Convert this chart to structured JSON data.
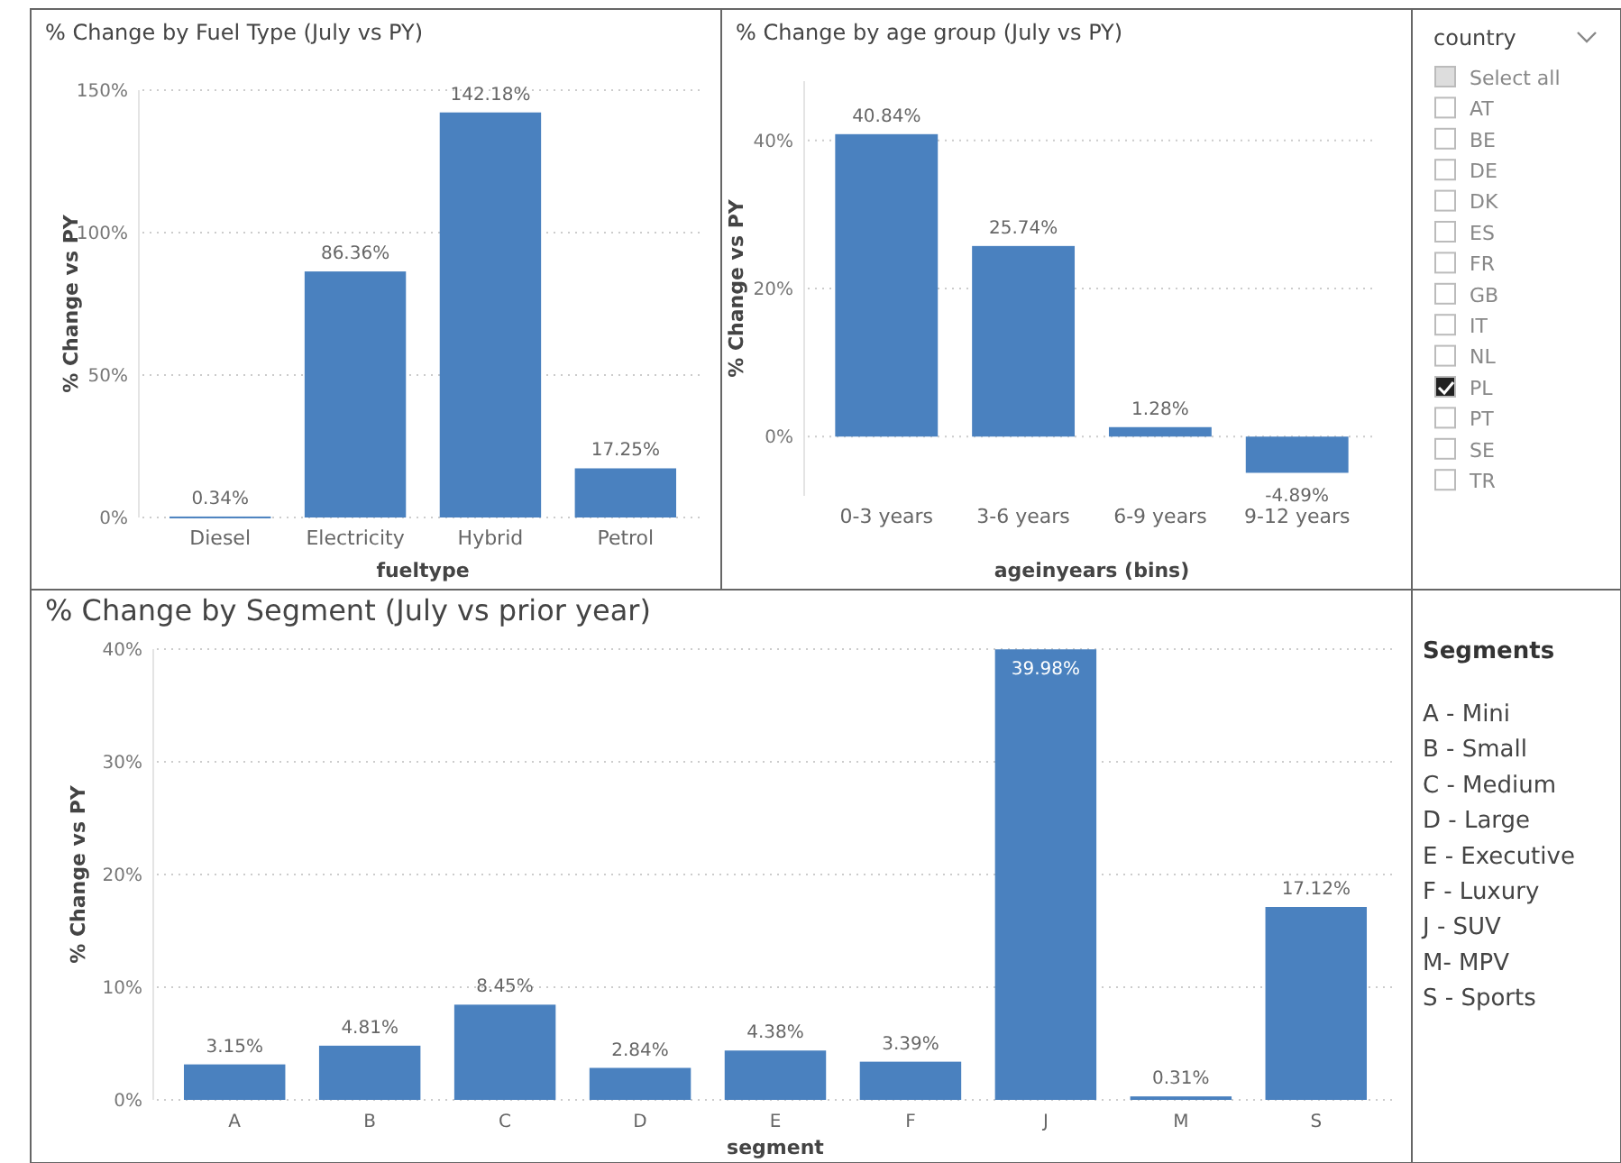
{
  "chart_data": [
    {
      "type": "bar",
      "title": "% Change by Fuel Type (July vs PY)",
      "xlabel": "fueltype",
      "ylabel": "% Change vs PY",
      "categories": [
        "Diesel",
        "Electricity",
        "Hybrid",
        "Petrol"
      ],
      "values": [
        0.34,
        86.36,
        142.18,
        17.25
      ],
      "value_labels": [
        "0.34%",
        "86.36%",
        "142.18%",
        "17.25%"
      ],
      "color": "#4a81bf",
      "ylim": [
        0,
        150
      ],
      "yticks": [
        {
          "value": 0,
          "label": "0%"
        },
        {
          "value": 50,
          "label": "50%"
        },
        {
          "value": 100,
          "label": "100%"
        },
        {
          "value": 150,
          "label": "150%"
        }
      ],
      "grid": "y"
    },
    {
      "type": "bar",
      "title": "% Change by age group (July vs PY)",
      "xlabel": "ageinyears (bins)",
      "ylabel": "% Change vs PY",
      "categories": [
        "0-3 years",
        "3-6 years",
        "6-9 years",
        "9-12 years"
      ],
      "values": [
        40.84,
        25.74,
        1.28,
        -4.89
      ],
      "value_labels": [
        "40.84%",
        "25.74%",
        "1.28%",
        "-4.89%"
      ],
      "color": "#4a81bf",
      "ylim": [
        -8,
        48
      ],
      "yticks": [
        {
          "value": 0,
          "label": "0%"
        },
        {
          "value": 20,
          "label": "20%"
        },
        {
          "value": 40,
          "label": "40%"
        }
      ],
      "grid": "y"
    },
    {
      "type": "other",
      "title": "country",
      "annotations": [
        "Select all",
        "AT",
        "BE",
        "DE",
        "DK",
        "ES",
        "FR",
        "GB",
        "IT",
        "NL",
        "PL",
        "PT",
        "SE",
        "TR"
      ],
      "colors": [
        "#dddddd",
        "#ffffff",
        "#ffffff",
        "#ffffff",
        "#ffffff",
        "#ffffff",
        "#ffffff",
        "#ffffff",
        "#ffffff",
        "#ffffff",
        "#222222",
        "#ffffff",
        "#ffffff",
        "#ffffff"
      ]
    },
    {
      "type": "bar",
      "title": "% Change by Segment (July vs prior year)",
      "xlabel": "segment",
      "ylabel": "% Change vs PY",
      "categories": [
        "A",
        "B",
        "C",
        "D",
        "E",
        "F",
        "J",
        "M",
        "S"
      ],
      "values": [
        3.15,
        4.81,
        8.45,
        2.84,
        4.38,
        3.39,
        39.98,
        0.31,
        17.12
      ],
      "value_labels": [
        "3.15%",
        "4.81%",
        "8.45%",
        "2.84%",
        "4.38%",
        "3.39%",
        "39.98%",
        "0.31%",
        "17.12%"
      ],
      "color": "#4a81bf",
      "ylim": [
        0,
        40
      ],
      "yticks": [
        {
          "value": 0,
          "label": "0%"
        },
        {
          "value": 10,
          "label": "10%"
        },
        {
          "value": 20,
          "label": "20%"
        },
        {
          "value": 30,
          "label": "30%"
        },
        {
          "value": 40,
          "label": "40%"
        }
      ],
      "grid": "y"
    },
    {
      "type": "other",
      "title": "Segments",
      "annotations": [
        "A - Mini",
        "B - Small",
        "C - Medium",
        "D - Large",
        "E - Executive",
        "F - Luxury",
        "J - SUV",
        "M- MPV",
        "S - Sports"
      ]
    }
  ]
}
